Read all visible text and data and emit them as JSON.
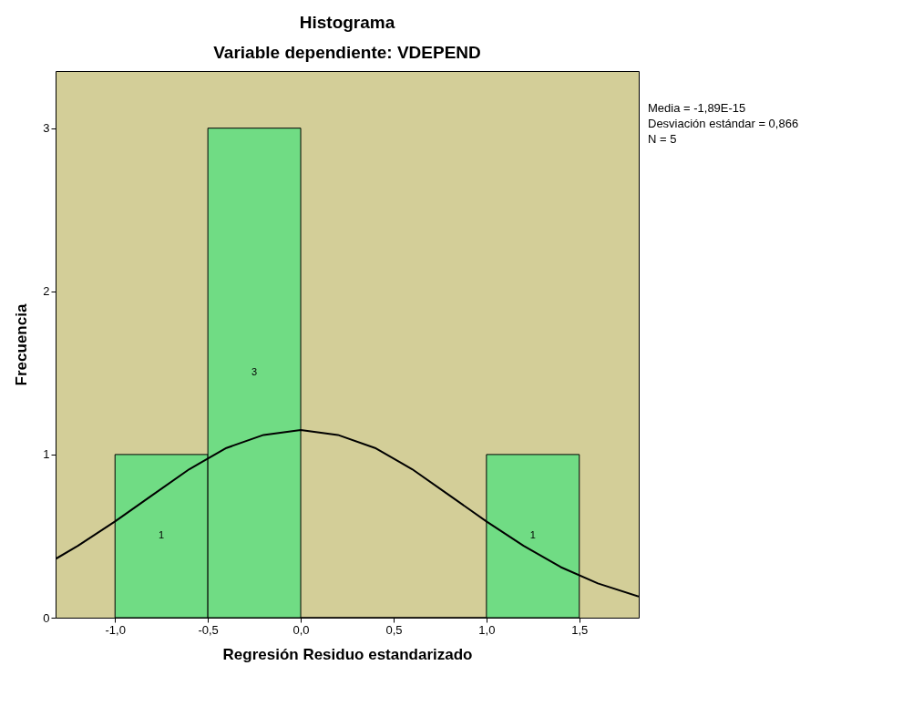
{
  "chart_data": {
    "type": "histogram",
    "title": "Histograma",
    "subtitle": "Variable dependiente: VDEPEND",
    "xlabel": "Regresión Residuo estandarizado",
    "ylabel": "Frecuencia",
    "bins": [
      -1.0,
      -0.5,
      0.0,
      0.5,
      1.0,
      1.5
    ],
    "values": [
      1,
      3,
      0,
      0,
      1
    ],
    "value_labels": [
      "1",
      "3",
      null,
      null,
      "1"
    ],
    "color": "#70dc84",
    "series": [
      {
        "type": "line",
        "color": "#000000",
        "x": [
          -1.32,
          -1.2,
          -1.0,
          -0.8,
          -0.6,
          -0.4,
          -0.2,
          0.0,
          0.2,
          0.4,
          0.6,
          0.8,
          1.0,
          1.2,
          1.4,
          1.6,
          1.82
        ],
        "values": [
          0.36,
          0.44,
          0.59,
          0.75,
          0.91,
          1.04,
          1.12,
          1.15,
          1.12,
          1.04,
          0.91,
          0.75,
          0.59,
          0.44,
          0.31,
          0.21,
          0.13
        ]
      }
    ],
    "xlim": [
      -1.32,
      1.82
    ],
    "ylim": [
      0,
      3.35
    ],
    "xticks": [
      {
        "value": -1.0,
        "label": "-1,0"
      },
      {
        "value": -0.5,
        "label": "-0,5"
      },
      {
        "value": 0.0,
        "label": "0,0"
      },
      {
        "value": 0.5,
        "label": "0,5"
      },
      {
        "value": 1.0,
        "label": "1,0"
      },
      {
        "value": 1.5,
        "label": "1,5"
      }
    ],
    "yticks": [
      0,
      1,
      2,
      3
    ],
    "grid": false,
    "annotations": [
      "Media = -1,89E-15",
      "Desviación estándar = 0,866",
      "N = 5"
    ]
  }
}
